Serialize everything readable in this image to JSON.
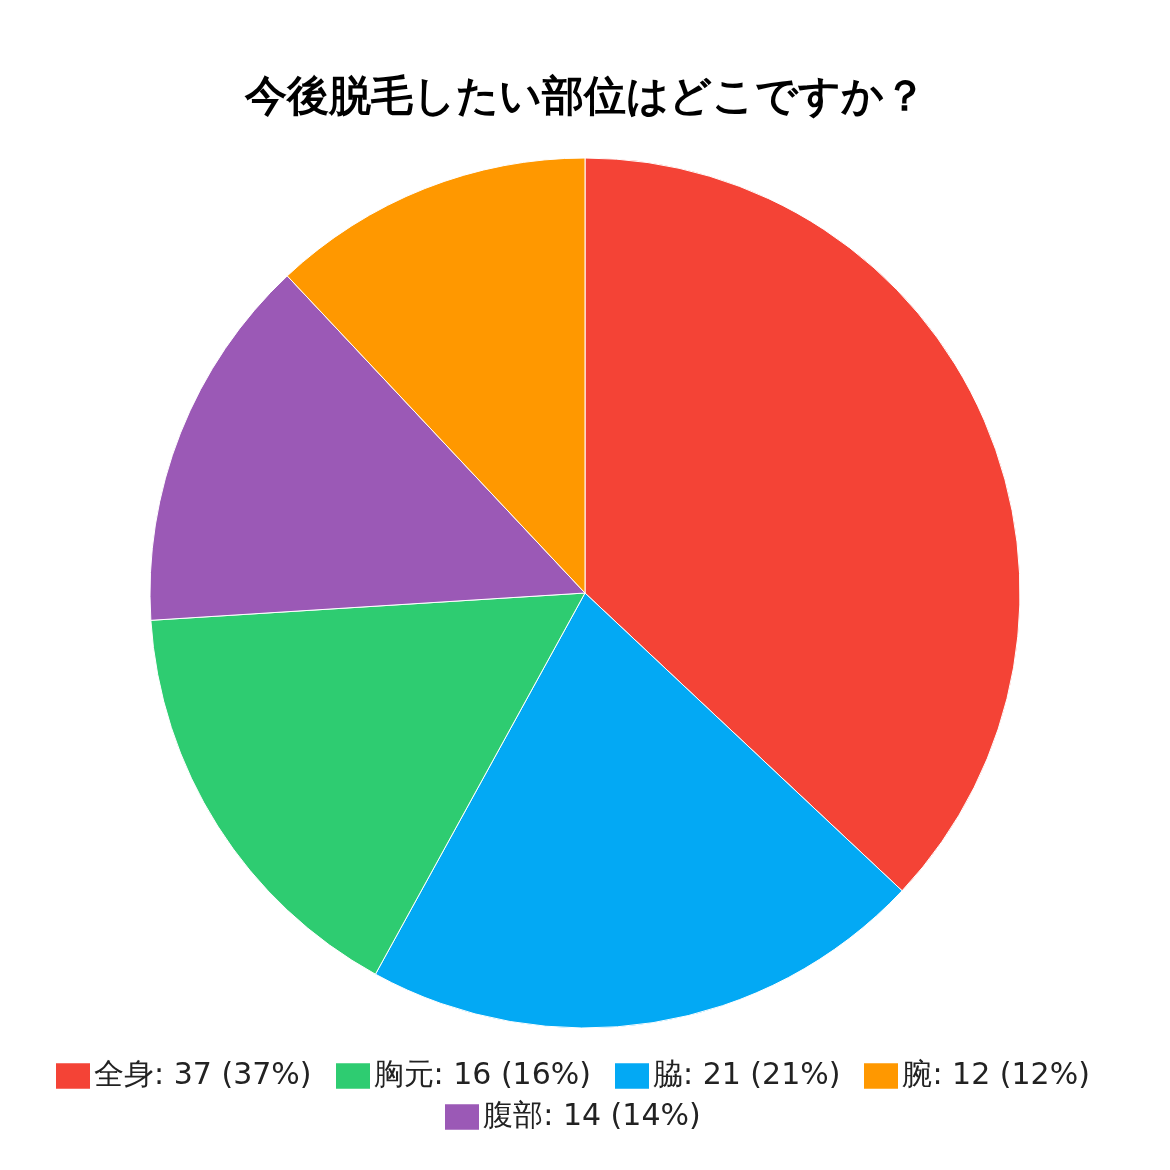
{
  "chart_data": {
    "type": "pie",
    "title": "今後脱毛したい部位はどこですか？",
    "categories": [
      "全身: 37 (37%)",
      "脇: 21 (21%)",
      "胸元: 16 (16%)",
      "腹部: 14 (14%)",
      "腕: 12 (12%)"
    ],
    "values": [
      37,
      21,
      16,
      14,
      12
    ],
    "colors": [
      "#f44336",
      "#03a9f4",
      "#2ecc71",
      "#9b59b6",
      "#ff9800"
    ],
    "legend": "bottom"
  }
}
